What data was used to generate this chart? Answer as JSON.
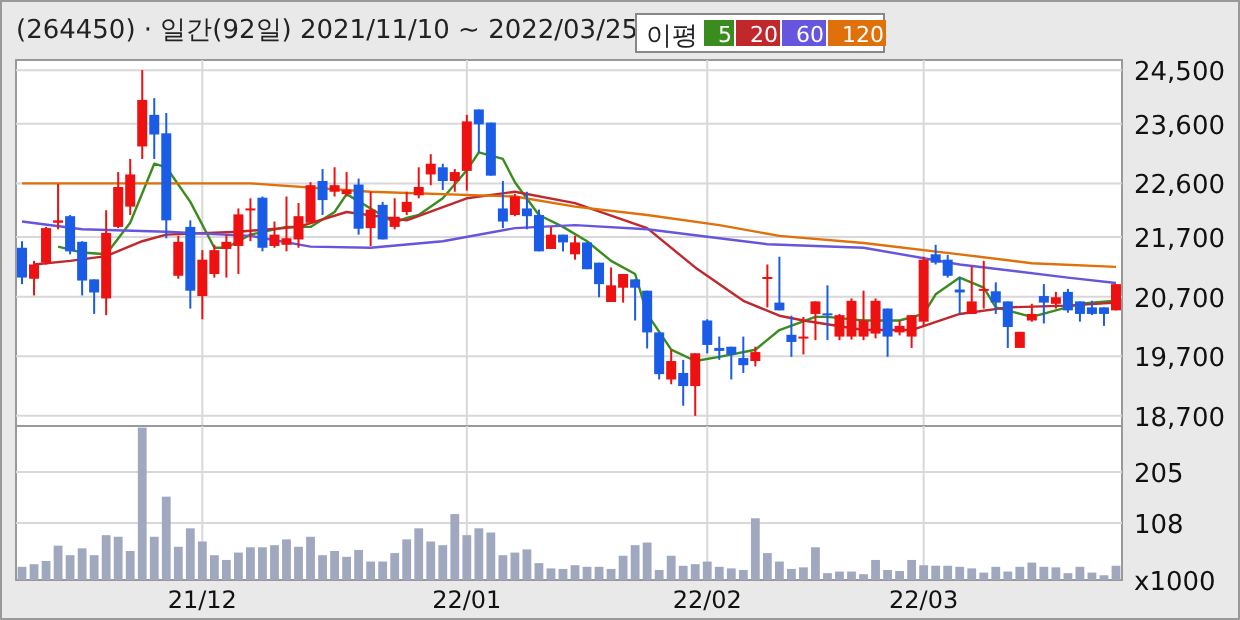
{
  "chart_data": [
    {
      "type": "candlestick",
      "title": "(264450) · 일간(92일) 2021/11/10 ~ 2022/03/25",
      "legend_title": "이평",
      "legend": "top",
      "grid": true,
      "tick_labels": "y",
      "categories": [
        null,
        null,
        null,
        null,
        null,
        null,
        null,
        null,
        null,
        null,
        null,
        null,
        null,
        null,
        null,
        null,
        null,
        null,
        null,
        null,
        null,
        null,
        null,
        null,
        null,
        null,
        null,
        null,
        null,
        null,
        null,
        null,
        null,
        null,
        null,
        null,
        null,
        null,
        null,
        null,
        null,
        null,
        null,
        null,
        null,
        null,
        null,
        null,
        null,
        null,
        null,
        null,
        null,
        null,
        null,
        null,
        null,
        null,
        null,
        null,
        null,
        null,
        null,
        null,
        null,
        null,
        null,
        null,
        null,
        null,
        null,
        null,
        null,
        null,
        null,
        null,
        null,
        null,
        null,
        null,
        null,
        null,
        null,
        null,
        null,
        null,
        null,
        null,
        null,
        null,
        null,
        null
      ],
      "colors": [
        "#1a5ce6",
        "#ee1111",
        "#ee1111",
        "#ee1111",
        "#1a5ce6",
        "#1a5ce6",
        "#1a5ce6",
        "#ee1111",
        "#ee1111",
        "#ee1111",
        "#ee1111",
        "#1a5ce6",
        "#1a5ce6",
        "#ee1111",
        "#1a5ce6",
        "#ee1111",
        "#ee1111",
        "#ee1111",
        "#ee1111",
        "#ee1111",
        "#1a5ce6",
        "#ee1111",
        "#ee1111",
        "#ee1111",
        "#ee1111",
        "#1a5ce6",
        "#ee1111",
        "#ee1111",
        "#1a5ce6",
        "#ee1111",
        "#1a5ce6",
        "#ee1111",
        "#ee1111",
        "#ee1111",
        "#ee1111",
        "#1a5ce6",
        "#ee1111",
        "#ee1111",
        "#1a5ce6",
        "#1a5ce6",
        "#1a5ce6",
        "#ee1111",
        "#1a5ce6",
        "#1a5ce6",
        "#ee1111",
        "#1a5ce6",
        "#ee1111",
        "#1a5ce6",
        "#1a5ce6",
        "#ee1111",
        "#ee1111",
        "#1a5ce6",
        "#1a5ce6",
        "#1a5ce6",
        "#ee1111",
        "#1a5ce6",
        "#ee1111",
        "#1a5ce6",
        "#1a5ce6",
        "#1a5ce6",
        "#1a5ce6",
        "#ee1111",
        "#ee1111",
        "#1a5ce6",
        "#1a5ce6",
        "#ee1111",
        "#ee1111",
        "#1a5ce6",
        "#ee1111",
        "#ee1111",
        "#ee1111",
        "#ee1111",
        "#1a5ce6",
        "#ee1111",
        "#ee1111",
        "#ee1111",
        "#1a5ce6",
        "#1a5ce6",
        "#1a5ce6",
        "#ee1111",
        "#ee1111",
        "#1a5ce6",
        "#1a5ce6",
        "#ee1111",
        "#ee1111",
        "#1a5ce6",
        "#ee1111",
        "#1a5ce6",
        "#1a5ce6",
        "#1a5ce6",
        "#1a5ce6",
        "#ee1111"
      ],
      "ylim": [
        18530,
        24670
      ],
      "yticks": [
        {
          "value": 18700,
          "label": "18,700"
        },
        {
          "value": 19700,
          "label": "19,700"
        },
        {
          "value": 20700,
          "label": "20,700"
        },
        {
          "value": 21700,
          "label": "21,700"
        },
        {
          "value": 22600,
          "label": "22,600"
        },
        {
          "value": 23600,
          "label": "23,600"
        },
        {
          "value": 24500,
          "label": "24,500"
        }
      ],
      "ohlc": [
        [
          21520,
          21630,
          20910,
          21020
        ],
        [
          21000,
          21300,
          20720,
          21240
        ],
        [
          21270,
          21870,
          21240,
          21850
        ],
        [
          21940,
          22590,
          21830,
          21980
        ],
        [
          22050,
          22070,
          21410,
          21460
        ],
        [
          21620,
          21630,
          20720,
          20970
        ],
        [
          20990,
          20990,
          20410,
          20770
        ],
        [
          20670,
          22150,
          20390,
          21770
        ],
        [
          21870,
          22790,
          21850,
          22540
        ],
        [
          22210,
          23010,
          22070,
          22750
        ],
        [
          23220,
          24500,
          23010,
          24000
        ],
        [
          23750,
          24030,
          23010,
          23420
        ],
        [
          23440,
          23780,
          21680,
          21980
        ],
        [
          21050,
          21720,
          21000,
          21620
        ],
        [
          21870,
          21980,
          20500,
          20800
        ],
        [
          20710,
          21480,
          20320,
          21320
        ],
        [
          21080,
          21570,
          21020,
          21480
        ],
        [
          21500,
          21740,
          21020,
          21620
        ],
        [
          21550,
          22180,
          21080,
          22080
        ],
        [
          22160,
          22350,
          21630,
          22180
        ],
        [
          22360,
          22380,
          21460,
          21520
        ],
        [
          21550,
          21960,
          21520,
          21740
        ],
        [
          21570,
          22380,
          21460,
          21680
        ],
        [
          21660,
          22270,
          21520,
          22050
        ],
        [
          21940,
          22620,
          21930,
          22570
        ],
        [
          22640,
          22840,
          22070,
          22320
        ],
        [
          22460,
          22870,
          22380,
          22570
        ],
        [
          22420,
          22790,
          22380,
          22490
        ],
        [
          22580,
          22680,
          21740,
          21840
        ],
        [
          21850,
          22460,
          21550,
          22160
        ],
        [
          22240,
          22290,
          21660,
          21660
        ],
        [
          21870,
          22350,
          21830,
          22040
        ],
        [
          22120,
          22460,
          22070,
          22290
        ],
        [
          22400,
          22870,
          22350,
          22540
        ],
        [
          22750,
          23090,
          22570,
          22930
        ],
        [
          22870,
          22930,
          22490,
          22640
        ],
        [
          22640,
          22840,
          22460,
          22790
        ],
        [
          22810,
          23750,
          22480,
          23640
        ],
        [
          23840,
          23840,
          23120,
          23590
        ],
        [
          23620,
          23620,
          22730,
          22730
        ],
        [
          22180,
          22640,
          21850,
          21960
        ],
        [
          22070,
          22420,
          22050,
          22380
        ],
        [
          22180,
          22460,
          21830,
          22050
        ],
        [
          22070,
          22160,
          21460,
          21460
        ],
        [
          21500,
          21870,
          21500,
          21740
        ],
        [
          21740,
          21740,
          21460,
          21610
        ],
        [
          21410,
          21720,
          21320,
          21610
        ],
        [
          21610,
          21610,
          21160,
          21160
        ],
        [
          21270,
          21270,
          20690,
          20910
        ],
        [
          20610,
          21190,
          20610,
          20890
        ],
        [
          20850,
          21080,
          20600,
          21080
        ],
        [
          20990,
          20990,
          20300,
          20850
        ],
        [
          20800,
          20800,
          19830,
          20100
        ],
        [
          20100,
          20100,
          19310,
          19400
        ],
        [
          19310,
          19810,
          19230,
          19620
        ],
        [
          19420,
          19640,
          18870,
          19200
        ],
        [
          19200,
          19750,
          18700,
          19750
        ],
        [
          20300,
          20320,
          19750,
          19890
        ],
        [
          19840,
          20030,
          19640,
          19790
        ],
        [
          19860,
          19860,
          19310,
          19730
        ],
        [
          19670,
          20030,
          19420,
          19550
        ],
        [
          19620,
          19860,
          19530,
          19770
        ],
        [
          21010,
          21240,
          20520,
          21030
        ],
        [
          20600,
          21370,
          20470,
          20470
        ],
        [
          20060,
          20380,
          19690,
          19940
        ],
        [
          20000,
          20360,
          19730,
          20030
        ],
        [
          20410,
          20620,
          19970,
          20620
        ],
        [
          20420,
          20890,
          19970,
          20400
        ],
        [
          20030,
          20410,
          19970,
          20390
        ],
        [
          20030,
          20670,
          19980,
          20630
        ],
        [
          20030,
          20800,
          19970,
          20300
        ],
        [
          20080,
          20670,
          20000,
          20630
        ],
        [
          20500,
          20500,
          19690,
          20030
        ],
        [
          20100,
          20300,
          20050,
          20210
        ],
        [
          20030,
          20390,
          19840,
          20390
        ],
        [
          20280,
          21370,
          20210,
          21320
        ],
        [
          21410,
          21570,
          21240,
          21270
        ],
        [
          21320,
          21400,
          21020,
          21050
        ],
        [
          20820,
          21020,
          20410,
          20770
        ],
        [
          20410,
          21210,
          20410,
          20620
        ],
        [
          20810,
          21300,
          20500,
          20830
        ],
        [
          20790,
          20940,
          20410,
          20600
        ],
        [
          20620,
          20620,
          19840,
          20190
        ],
        [
          19840,
          20110,
          19840,
          20110
        ],
        [
          20300,
          20580,
          20280,
          20410
        ],
        [
          20710,
          20910,
          20250,
          20600
        ],
        [
          20580,
          20780,
          20500,
          20690
        ],
        [
          20780,
          20830,
          20430,
          20470
        ],
        [
          20620,
          20620,
          20280,
          20410
        ],
        [
          20520,
          20630,
          20390,
          20410
        ],
        [
          20520,
          20520,
          20210,
          20410
        ],
        [
          20470,
          20910,
          20470,
          20910
        ]
      ],
      "series": [
        {
          "name": "5",
          "type": "line",
          "color": "#3a8c1e",
          "values": [
            null,
            null,
            null,
            21540,
            null,
            21440,
            null,
            21410,
            null,
            21940,
            null,
            22930,
            22870,
            null,
            22290,
            null,
            21520,
            21520,
            null,
            21740,
            null,
            null,
            21870,
            null,
            21870,
            null,
            22120,
            22420,
            null,
            22180,
            null,
            21940,
            22020,
            22070,
            null,
            22350,
            null,
            22820,
            23120,
            null,
            23010,
            22620,
            null,
            22070,
            null,
            21870,
            null,
            21630,
            null,
            21300,
            null,
            21080,
            20410,
            null,
            19810,
            null,
            19620,
            null,
            19690,
            null,
            null,
            19810,
            null,
            20140,
            null,
            null,
            20360,
            20360,
            null,
            null,
            20300,
            null,
            null,
            20300,
            null,
            20410,
            20740,
            null,
            21020,
            null,
            20850,
            20520,
            null,
            null,
            20360,
            null,
            20470,
            null,
            20580,
            null,
            null,
            20630
          ]
        },
        {
          "name": "20",
          "type": "line",
          "color": "#c0282c",
          "values": [
            null,
            21240,
            null,
            null,
            21300,
            null,
            null,
            21380,
            null,
            null,
            21630,
            null,
            21740,
            null,
            null,
            null,
            null,
            null,
            21790,
            null,
            null,
            null,
            null,
            21870,
            null,
            null,
            null,
            22120,
            null,
            null,
            null,
            null,
            21980,
            null,
            null,
            null,
            null,
            22350,
            null,
            null,
            null,
            22460,
            null,
            null,
            null,
            null,
            22270,
            null,
            null,
            null,
            null,
            null,
            21850,
            null,
            null,
            null,
            21190,
            null,
            null,
            null,
            20630,
            null,
            null,
            20380,
            null,
            20300,
            null,
            null,
            null,
            null,
            20140,
            null,
            null,
            null,
            20140,
            null,
            null,
            null,
            20410,
            null,
            null,
            null,
            20520,
            null,
            null,
            null,
            null,
            20550,
            null,
            null,
            null,
            20600
          ]
        },
        {
          "name": "60",
          "type": "line",
          "color": "#6655dd",
          "values": [
            21960,
            null,
            null,
            null,
            null,
            21830,
            null,
            null,
            null,
            null,
            null,
            null,
            21790,
            null,
            null,
            null,
            null,
            null,
            null,
            21720,
            null,
            null,
            null,
            null,
            21540,
            null,
            null,
            null,
            null,
            21520,
            null,
            null,
            null,
            null,
            null,
            21630,
            null,
            null,
            null,
            null,
            null,
            21850,
            null,
            null,
            null,
            null,
            21900,
            null,
            null,
            null,
            null,
            null,
            21830,
            null,
            null,
            null,
            null,
            null,
            21680,
            null,
            null,
            null,
            21580,
            null,
            null,
            null,
            null,
            null,
            null,
            null,
            21520,
            null,
            null,
            null,
            null,
            null,
            null,
            null,
            21240,
            null,
            null,
            null,
            null,
            null,
            null,
            null,
            null,
            21020,
            null,
            null,
            null,
            20930
          ]
        },
        {
          "name": "120",
          "type": "line",
          "color": "#e0700a",
          "values": [
            22600,
            null,
            null,
            null,
            null,
            null,
            null,
            null,
            null,
            null,
            null,
            null,
            null,
            null,
            null,
            null,
            null,
            null,
            null,
            22600,
            null,
            null,
            null,
            null,
            null,
            null,
            null,
            null,
            null,
            22460,
            null,
            null,
            null,
            null,
            null,
            null,
            null,
            null,
            null,
            null,
            null,
            22380,
            null,
            null,
            null,
            null,
            22210,
            null,
            null,
            null,
            null,
            null,
            22070,
            null,
            null,
            null,
            null,
            null,
            21900,
            null,
            null,
            null,
            null,
            21720,
            null,
            null,
            null,
            null,
            null,
            null,
            21600,
            null,
            null,
            null,
            null,
            null,
            null,
            null,
            21410,
            null,
            null,
            null,
            null,
            null,
            21260,
            null,
            null,
            null,
            null,
            null,
            null,
            21200
          ]
        }
      ]
    },
    {
      "type": "bar",
      "grid": true,
      "color": "#a0a8c0",
      "categories": [
        null,
        null,
        null,
        null,
        null,
        null,
        null,
        null,
        null,
        null,
        null,
        null,
        null,
        null,
        null,
        "21/12",
        null,
        null,
        null,
        null,
        null,
        null,
        null,
        null,
        null,
        null,
        null,
        null,
        null,
        null,
        null,
        null,
        null,
        null,
        null,
        null,
        null,
        "22/01",
        null,
        null,
        null,
        null,
        null,
        null,
        null,
        null,
        null,
        null,
        null,
        null,
        null,
        null,
        null,
        null,
        null,
        null,
        null,
        "22/02",
        null,
        null,
        null,
        null,
        null,
        null,
        null,
        null,
        null,
        null,
        null,
        null,
        null,
        null,
        null,
        null,
        null,
        "22/03",
        null,
        null,
        null,
        null,
        null,
        null,
        null,
        null,
        null,
        null,
        null,
        null,
        null,
        null,
        null,
        null
      ],
      "ylim": [
        0,
        292
      ],
      "yticks": [
        {
          "value": 0,
          "label": "x1000"
        },
        108,
        205
      ],
      "values": [
        25,
        30,
        36,
        65,
        47,
        60,
        47,
        85,
        82,
        55,
        289,
        82,
        158,
        63,
        98,
        73,
        47,
        38,
        52,
        62,
        62,
        66,
        77,
        63,
        82,
        47,
        55,
        44,
        57,
        35,
        35,
        51,
        77,
        98,
        73,
        66,
        125,
        85,
        98,
        90,
        47,
        52,
        58,
        32,
        22,
        21,
        28,
        25,
        25,
        21,
        46,
        66,
        71,
        19,
        46,
        27,
        30,
        35,
        25,
        22,
        19,
        117,
        51,
        35,
        21,
        24,
        62,
        13,
        16,
        16,
        11,
        38,
        19,
        17,
        38,
        28,
        27,
        27,
        25,
        22,
        14,
        25,
        16,
        25,
        33,
        25,
        24,
        13,
        25,
        14,
        9,
        27
      ]
    }
  ]
}
